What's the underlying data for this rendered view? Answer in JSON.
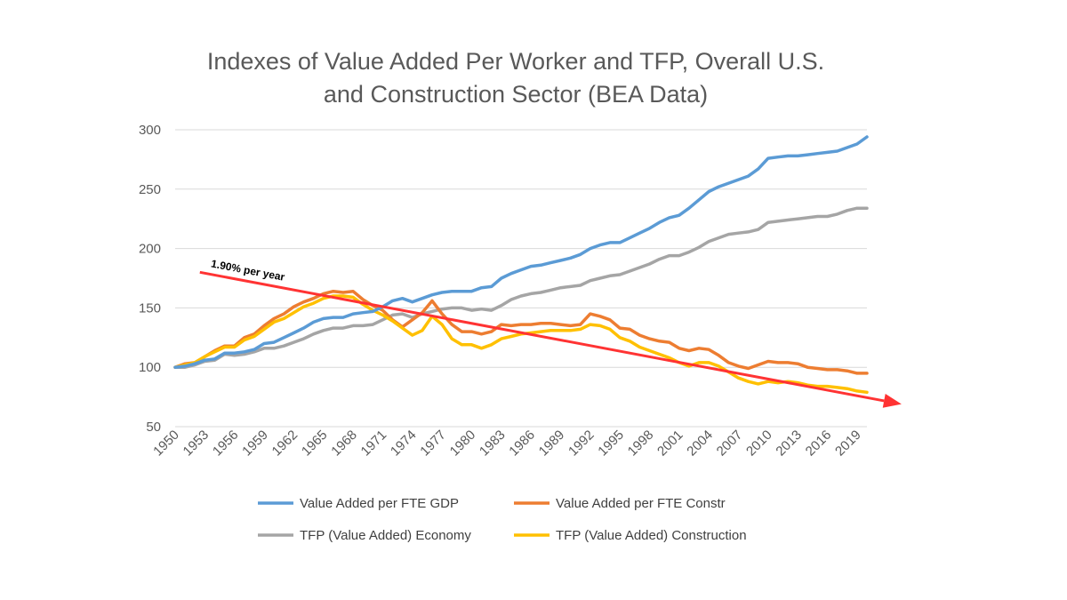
{
  "chart_data": {
    "type": "line",
    "title_lines": [
      "Indexes of Value Added Per Worker and TFP, Overall U.S.",
      "and Construction Sector (BEA Data)"
    ],
    "xlabel": "",
    "ylabel": "",
    "x_start": 1950,
    "x_end": 2020,
    "x_tick_labels": [
      "1950",
      "1953",
      "1956",
      "1959",
      "1962",
      "1965",
      "1968",
      "1971",
      "1974",
      "1977",
      "1980",
      "1983",
      "1986",
      "1989",
      "1992",
      "1995",
      "1998",
      "2001",
      "2004",
      "2007",
      "2010",
      "2013",
      "2016",
      "2019"
    ],
    "y_tick_labels": [
      "300",
      "250",
      "200",
      "150",
      "100",
      "50"
    ],
    "ylim": [
      50,
      300
    ],
    "grid": true,
    "legend_position": "bottom",
    "series": [
      {
        "name": "Value Added per FTE GDP",
        "color": "#5B9BD5",
        "values": [
          100,
          101,
          103,
          106,
          107,
          112,
          112,
          113,
          115,
          120,
          121,
          125,
          129,
          133,
          138,
          141,
          142,
          142,
          145,
          146,
          147,
          151,
          156,
          158,
          155,
          158,
          161,
          163,
          164,
          164,
          164,
          167,
          168,
          175,
          179,
          182,
          185,
          186,
          188,
          190,
          192,
          195,
          200,
          203,
          205,
          205,
          209,
          213,
          217,
          222,
          226,
          228,
          234,
          241,
          248,
          252,
          255,
          258,
          261,
          267,
          276,
          277,
          278,
          278,
          279,
          280,
          281,
          282,
          285,
          288,
          294
        ]
      },
      {
        "name": "Value Added per FTE Constr",
        "color": "#ED7D31",
        "values": [
          100,
          103,
          104,
          109,
          114,
          118,
          118,
          125,
          128,
          135,
          141,
          145,
          151,
          155,
          158,
          162,
          164,
          163,
          164,
          157,
          152,
          148,
          140,
          134,
          140,
          146,
          156,
          145,
          136,
          130,
          130,
          128,
          130,
          136,
          135,
          136,
          136,
          137,
          137,
          136,
          135,
          136,
          145,
          143,
          140,
          133,
          132,
          127,
          124,
          122,
          121,
          116,
          114,
          116,
          115,
          110,
          104,
          101,
          99,
          102,
          105,
          104,
          104,
          103,
          100,
          99,
          98,
          98,
          97,
          95,
          95
        ]
      },
      {
        "name": "TFP (Value Added) Economy",
        "color": "#A5A5A5",
        "values": [
          100,
          100,
          102,
          105,
          106,
          111,
          110,
          111,
          113,
          116,
          116,
          118,
          121,
          124,
          128,
          131,
          133,
          133,
          135,
          135,
          136,
          140,
          144,
          145,
          142,
          145,
          147,
          149,
          150,
          150,
          148,
          149,
          148,
          152,
          157,
          160,
          162,
          163,
          165,
          167,
          168,
          169,
          173,
          175,
          177,
          178,
          181,
          184,
          187,
          191,
          194,
          194,
          197,
          201,
          206,
          209,
          212,
          213,
          214,
          216,
          222,
          223,
          224,
          225,
          226,
          227,
          227,
          229,
          232,
          234,
          234
        ]
      },
      {
        "name": "TFP (Value Added) Construction",
        "color": "#FFC000",
        "values": [
          100,
          102,
          104,
          109,
          113,
          117,
          117,
          123,
          126,
          132,
          138,
          141,
          146,
          151,
          154,
          158,
          160,
          160,
          159,
          153,
          148,
          144,
          139,
          133,
          127,
          131,
          143,
          136,
          124,
          119,
          119,
          116,
          119,
          124,
          126,
          128,
          129,
          130,
          131,
          131,
          131,
          132,
          136,
          135,
          132,
          125,
          122,
          117,
          114,
          111,
          108,
          104,
          101,
          104,
          104,
          101,
          96,
          91,
          88,
          86,
          88,
          87,
          88,
          87,
          85,
          84,
          84,
          83,
          82,
          80,
          79
        ]
      }
    ],
    "annotations": [
      {
        "type": "trend_arrow",
        "label": "1.90% per year",
        "color": "#FF3333",
        "from": {
          "x": 1952.5,
          "y": 180
        },
        "to": {
          "x": 2023.5,
          "y": 69
        }
      }
    ]
  }
}
